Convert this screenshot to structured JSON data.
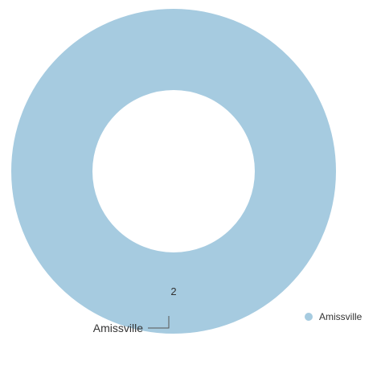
{
  "chart_data": {
    "type": "pie",
    "donut": true,
    "slices": [
      {
        "label": "Amissville",
        "value": 2,
        "color": "#a6cbe0"
      }
    ],
    "legend": {
      "placement": "bottom-right",
      "entries": [
        "Amissville"
      ]
    },
    "grid": false
  }
}
